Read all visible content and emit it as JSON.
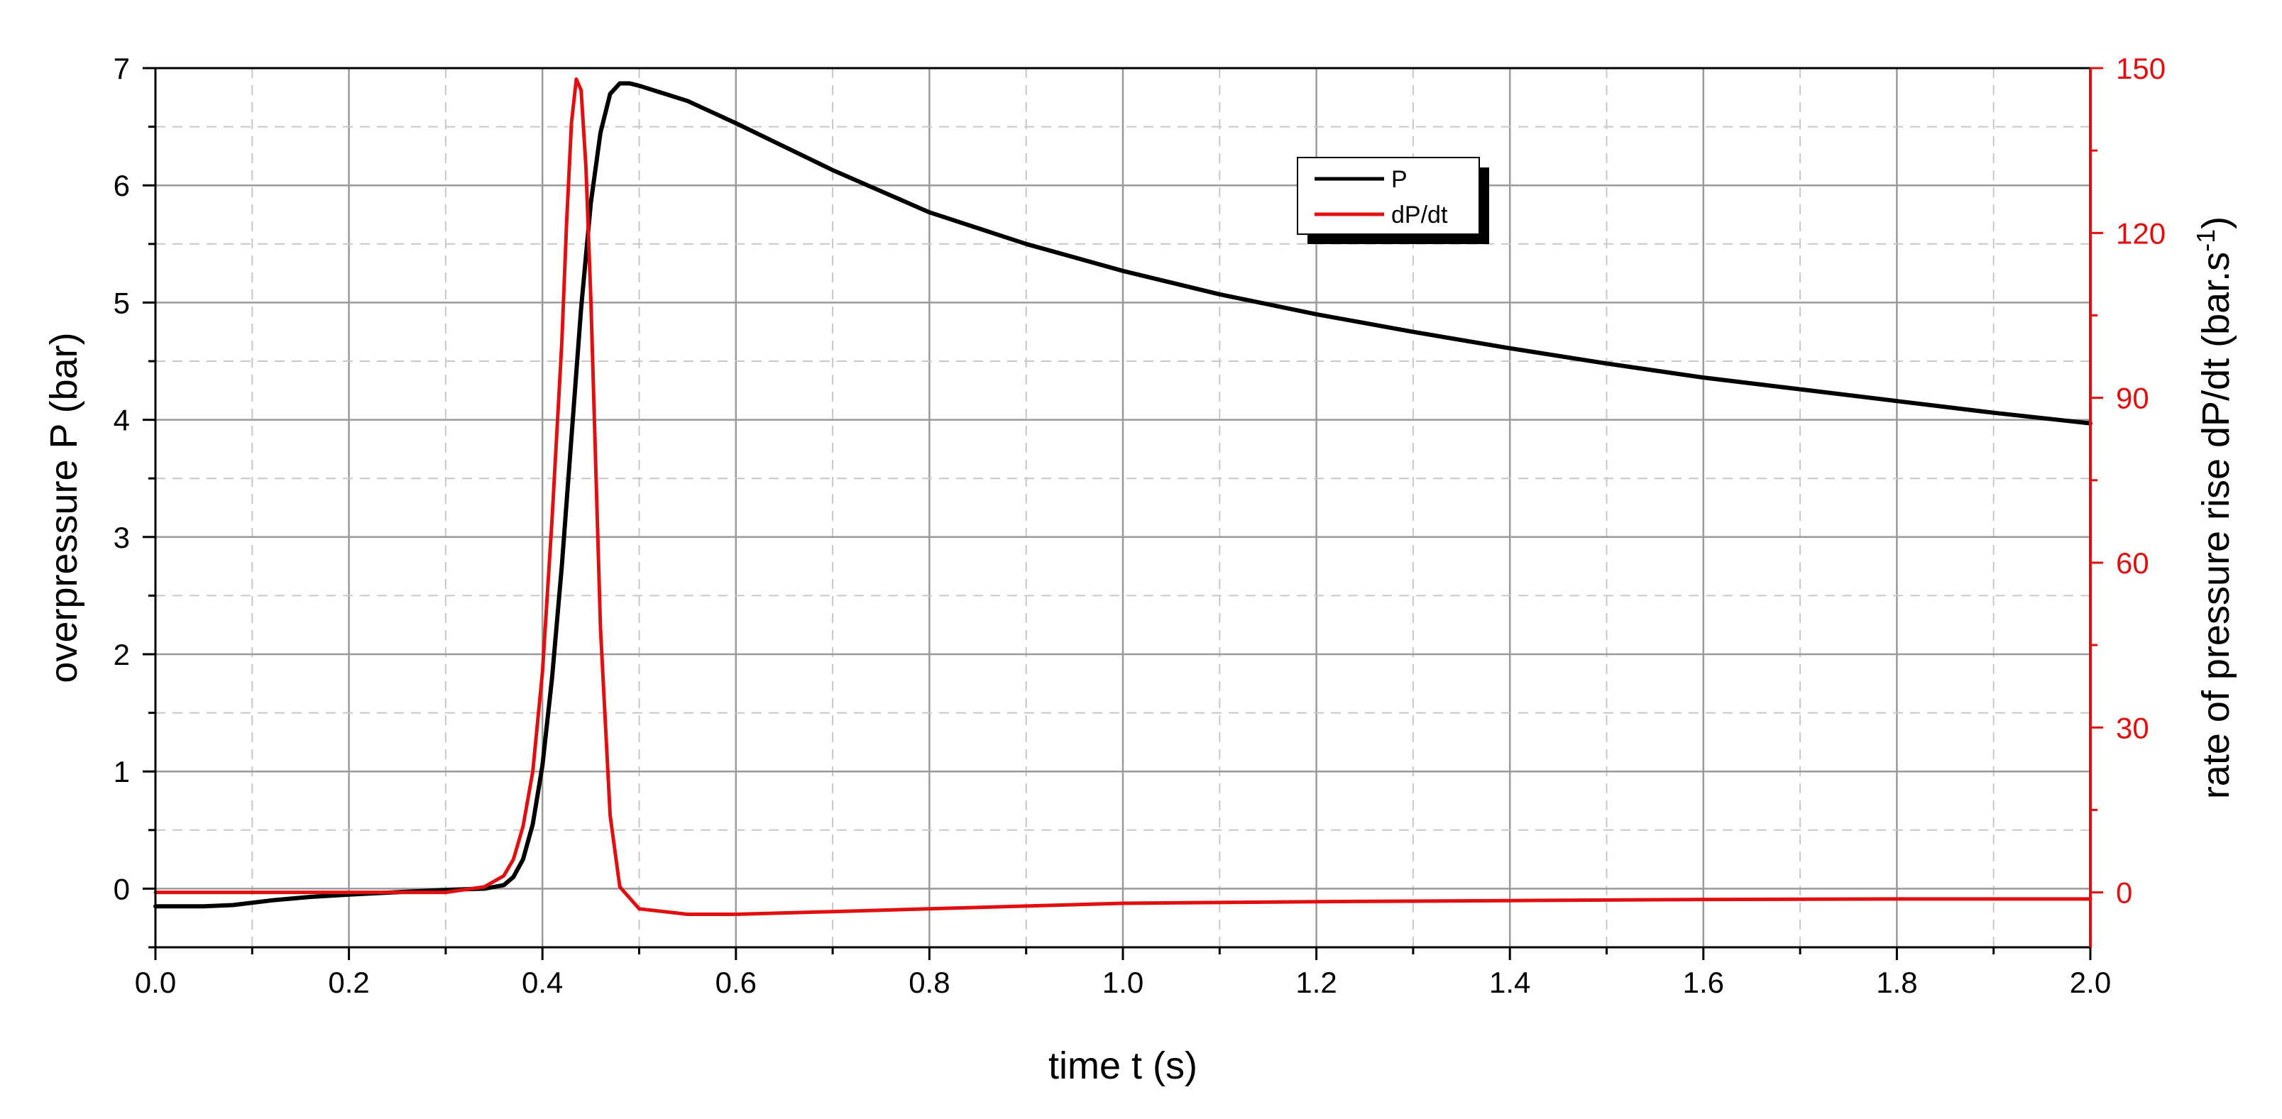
{
  "chart_data": {
    "type": "line",
    "title": "",
    "xlabel": "time t (s)",
    "ylabel_left": "overpressure P (bar)",
    "ylabel_right_main": "rate of pressure rise dP/dt (bar.s",
    "ylabel_right_sup": "-1",
    "ylabel_right_close": ")",
    "xlim": [
      0.0,
      2.0
    ],
    "ylim_left": [
      -0.5,
      7.0
    ],
    "ylim_right": [
      -10,
      150
    ],
    "xticks": [
      "0.0",
      "0.2",
      "0.4",
      "0.6",
      "0.8",
      "1.0",
      "1.2",
      "1.4",
      "1.6",
      "1.8",
      "2.0"
    ],
    "yticks_left": [
      "0",
      "1",
      "2",
      "3",
      "4",
      "5",
      "6",
      "7"
    ],
    "yticks_right": [
      "0",
      "30",
      "60",
      "90",
      "120",
      "150"
    ],
    "grid": true,
    "legend_position": "top-right",
    "colors": {
      "P": "#000000",
      "dPdt": "#e01010",
      "right_axis": "#e01010",
      "grid": "#9a9a9a"
    },
    "series": [
      {
        "name": "P",
        "axis": "left",
        "x": [
          0.0,
          0.05,
          0.08,
          0.12,
          0.16,
          0.2,
          0.25,
          0.3,
          0.34,
          0.36,
          0.37,
          0.38,
          0.39,
          0.4,
          0.41,
          0.42,
          0.43,
          0.44,
          0.45,
          0.46,
          0.47,
          0.48,
          0.49,
          0.5,
          0.55,
          0.6,
          0.65,
          0.7,
          0.75,
          0.8,
          0.9,
          1.0,
          1.1,
          1.2,
          1.3,
          1.4,
          1.5,
          1.6,
          1.7,
          1.8,
          1.9,
          2.0
        ],
        "y": [
          -0.15,
          -0.15,
          -0.14,
          -0.1,
          -0.07,
          -0.05,
          -0.03,
          -0.01,
          0.0,
          0.03,
          0.1,
          0.25,
          0.55,
          1.05,
          1.8,
          2.75,
          3.85,
          4.95,
          5.85,
          6.45,
          6.78,
          6.87,
          6.87,
          6.85,
          6.72,
          6.53,
          6.33,
          6.13,
          5.95,
          5.77,
          5.5,
          5.27,
          5.07,
          4.9,
          4.75,
          4.61,
          4.48,
          4.36,
          4.26,
          4.16,
          4.06,
          3.97
        ]
      },
      {
        "name": "dP/dt",
        "axis": "right",
        "x": [
          0.0,
          0.1,
          0.2,
          0.3,
          0.34,
          0.36,
          0.37,
          0.38,
          0.39,
          0.4,
          0.41,
          0.42,
          0.425,
          0.43,
          0.435,
          0.44,
          0.445,
          0.45,
          0.455,
          0.46,
          0.47,
          0.48,
          0.5,
          0.55,
          0.6,
          0.7,
          0.8,
          0.9,
          1.0,
          1.2,
          1.4,
          1.6,
          1.8,
          2.0
        ],
        "y": [
          0,
          0,
          0,
          0,
          1,
          3,
          6,
          12,
          22,
          40,
          68,
          100,
          122,
          140,
          148,
          146,
          132,
          108,
          78,
          48,
          14,
          1,
          -3,
          -4,
          -4,
          -3.5,
          -3,
          -2.5,
          -2,
          -1.7,
          -1.5,
          -1.3,
          -1.2,
          -1.2
        ]
      }
    ]
  }
}
